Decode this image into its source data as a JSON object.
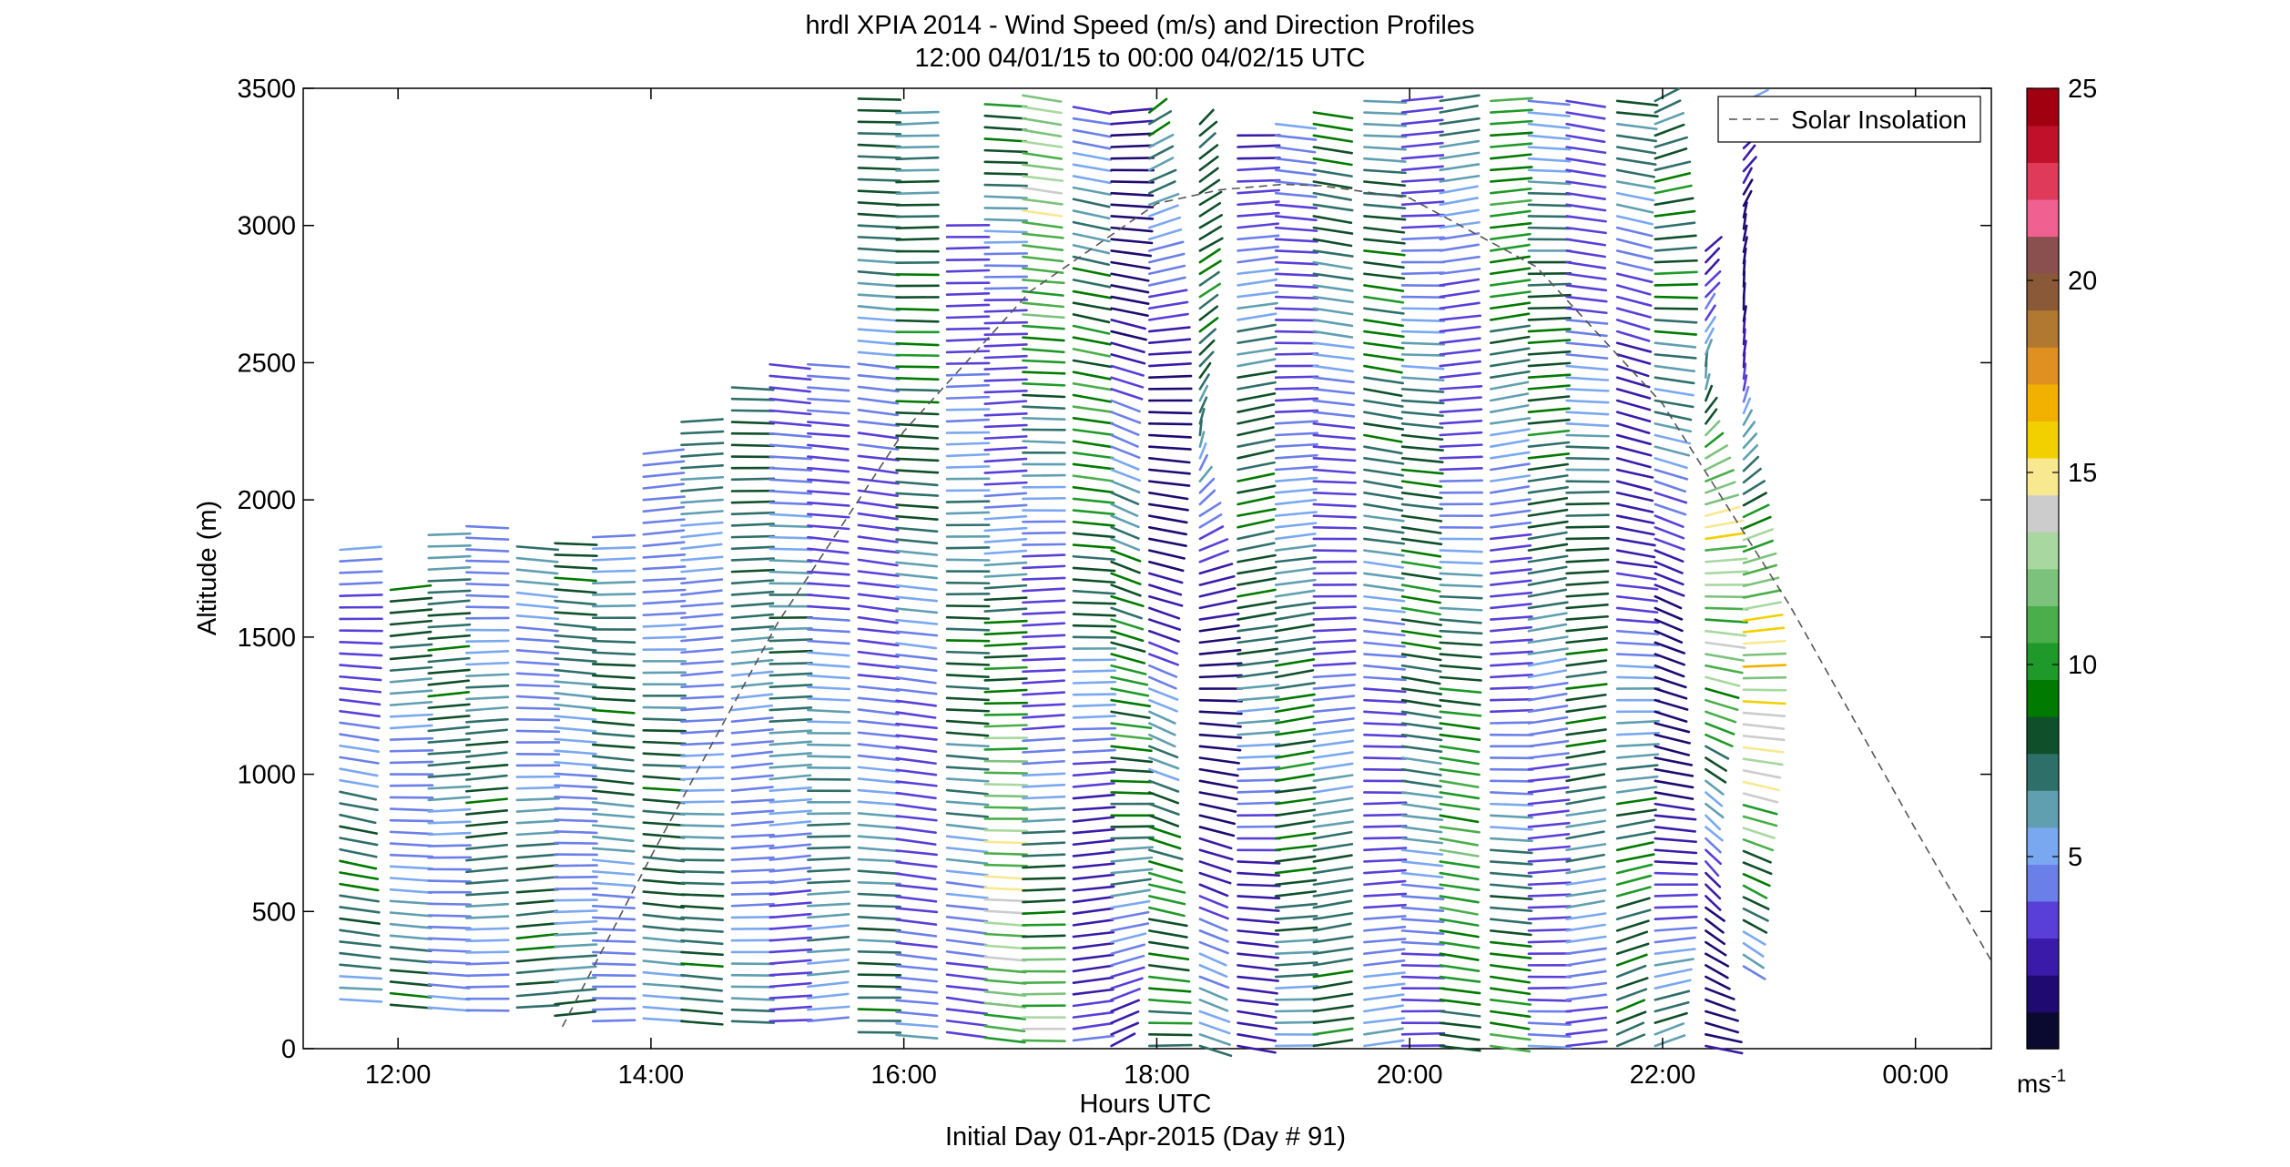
{
  "chart_data": {
    "type": "wind_barb_profile",
    "title": "hrdl XPIA 2014 - Wind Speed (m/s) and Direction Profiles",
    "subtitle": "12:00 04/01/15 to 00:00 04/02/15  UTC",
    "xlabel": "Hours UTC",
    "xlabel2": "Initial Day 01-Apr-2015 (Day # 91)",
    "ylabel": "Altitude (m)",
    "xlim_hours": [
      11.25,
      24.6
    ],
    "ylim": [
      0,
      3500
    ],
    "xticks": [
      {
        "value": 12,
        "label": "12:00"
      },
      {
        "value": 14,
        "label": "14:00"
      },
      {
        "value": 16,
        "label": "16:00"
      },
      {
        "value": 18,
        "label": "18:00"
      },
      {
        "value": 20,
        "label": "20:00"
      },
      {
        "value": 22,
        "label": "22:00"
      },
      {
        "value": 24,
        "label": "00:00"
      }
    ],
    "yticks": [
      0,
      500,
      1000,
      1500,
      2000,
      2500,
      3000,
      3500
    ],
    "legend": {
      "entries": [
        "Solar Insolation"
      ],
      "placement": "top-right",
      "line_style": "dashed",
      "color": "#555555"
    },
    "colorbar": {
      "unit_label": "ms",
      "unit_exponent": "-1",
      "range": [
        0,
        25
      ],
      "ticks": [
        5,
        10,
        15,
        20,
        25
      ],
      "colors": [
        "#0a0a30",
        "#1e0a70",
        "#3a1aa8",
        "#5a3ed8",
        "#6b7fe8",
        "#7aa8f0",
        "#5f9fb0",
        "#2f6f6a",
        "#0f4f2a",
        "#007a00",
        "#1f9a2a",
        "#4aae4a",
        "#7cc27c",
        "#a8d8a0",
        "#cccccc",
        "#f8e890",
        "#f2d000",
        "#f2b000",
        "#e09020",
        "#b07830",
        "#8a5a38",
        "#8a5050",
        "#f06090",
        "#e03a5a",
        "#c0102a",
        "#a00010"
      ]
    },
    "solar_insolation": {
      "x_hours": [
        13.3,
        14.0,
        15.0,
        16.0,
        17.0,
        18.0,
        18.5,
        19.0,
        19.3,
        20.0,
        21.0,
        22.0,
        23.0,
        24.0,
        24.6
      ],
      "y_altitude": [
        80,
        700,
        1550,
        2250,
        2760,
        3080,
        3130,
        3150,
        3145,
        3100,
        2850,
        2350,
        1620,
        800,
        320
      ]
    },
    "wind_profiles": [
      {
        "hour": 11.7,
        "altitude_range": [
          180,
          1850
        ],
        "speed_range": [
          3,
          9
        ],
        "direction_deg_range": [
          255,
          300
        ]
      },
      {
        "hour": 12.1,
        "altitude_range": [
          160,
          1700
        ],
        "speed_range": [
          4,
          9
        ],
        "direction_deg_range": [
          255,
          285
        ]
      },
      {
        "hour": 12.4,
        "altitude_range": [
          150,
          1890
        ],
        "speed_range": [
          4,
          9
        ],
        "direction_deg_range": [
          255,
          285
        ]
      },
      {
        "hour": 12.7,
        "altitude_range": [
          140,
          1940
        ],
        "speed_range": [
          4,
          9
        ],
        "direction_deg_range": [
          255,
          285
        ]
      },
      {
        "hour": 13.1,
        "altitude_range": [
          150,
          1840
        ],
        "speed_range": [
          4,
          9
        ],
        "direction_deg_range": [
          255,
          285
        ]
      },
      {
        "hour": 13.4,
        "altitude_range": [
          120,
          1850
        ],
        "speed_range": [
          4,
          9
        ],
        "direction_deg_range": [
          255,
          285
        ]
      },
      {
        "hour": 13.7,
        "altitude_range": [
          100,
          1880
        ],
        "speed_range": [
          4,
          9
        ],
        "direction_deg_range": [
          255,
          285
        ]
      },
      {
        "hour": 14.1,
        "altitude_range": [
          110,
          2180
        ],
        "speed_range": [
          4,
          9
        ],
        "direction_deg_range": [
          255,
          285
        ]
      },
      {
        "hour": 14.4,
        "altitude_range": [
          100,
          2320
        ],
        "speed_range": [
          4,
          9
        ],
        "direction_deg_range": [
          255,
          285
        ]
      },
      {
        "hour": 14.8,
        "altitude_range": [
          100,
          2430
        ],
        "speed_range": [
          4,
          9
        ],
        "direction_deg_range": [
          255,
          285
        ]
      },
      {
        "hour": 15.1,
        "altitude_range": [
          100,
          2500
        ],
        "speed_range": [
          3,
          8
        ],
        "direction_deg_range": [
          255,
          285
        ]
      },
      {
        "hour": 15.4,
        "altitude_range": [
          100,
          2500
        ],
        "speed_range": [
          3,
          8
        ],
        "direction_deg_range": [
          255,
          285
        ]
      },
      {
        "hour": 15.8,
        "altitude_range": [
          60,
          3470
        ],
        "speed_range": [
          3,
          9
        ],
        "direction_deg_range": [
          265,
          290
        ]
      },
      {
        "hour": 16.1,
        "altitude_range": [
          50,
          3450
        ],
        "speed_range": [
          3,
          10
        ],
        "direction_deg_range": [
          265,
          290
        ]
      },
      {
        "hour": 16.5,
        "altitude_range": [
          60,
          3000
        ],
        "speed_range": [
          3,
          9
        ],
        "direction_deg_range": [
          265,
          290
        ]
      },
      {
        "hour": 16.8,
        "altitude_range": [
          40,
          3470
        ],
        "speed_range": [
          3,
          15
        ],
        "direction_deg_range": [
          260,
          295
        ]
      },
      {
        "hour": 17.1,
        "altitude_range": [
          30,
          3480
        ],
        "speed_range": [
          3,
          15
        ],
        "direction_deg_range": [
          260,
          295
        ]
      },
      {
        "hour": 17.5,
        "altitude_range": [
          30,
          3470
        ],
        "speed_range": [
          2,
          12
        ],
        "direction_deg_range": [
          250,
          300
        ]
      },
      {
        "hour": 17.8,
        "altitude_range": [
          10,
          3450
        ],
        "speed_range": [
          1,
          11
        ],
        "direction_deg_range": [
          200,
          320
        ]
      },
      {
        "hour": 18.1,
        "altitude_range": [
          10,
          3420
        ],
        "speed_range": [
          1,
          11
        ],
        "direction_deg_range": [
          200,
          320
        ]
      },
      {
        "hour": 18.5,
        "altitude_range": [
          10,
          3400
        ],
        "speed_range": [
          1,
          10
        ],
        "direction_deg_range": [
          150,
          320
        ]
      },
      {
        "hour": 18.8,
        "altitude_range": [
          10,
          3350
        ],
        "speed_range": [
          2,
          10
        ],
        "direction_deg_range": [
          240,
          300
        ]
      },
      {
        "hour": 19.1,
        "altitude_range": [
          10,
          3370
        ],
        "speed_range": [
          3,
          10
        ],
        "direction_deg_range": [
          245,
          295
        ]
      },
      {
        "hour": 19.4,
        "altitude_range": [
          10,
          3420
        ],
        "speed_range": [
          3,
          10
        ],
        "direction_deg_range": [
          245,
          295
        ]
      },
      {
        "hour": 19.8,
        "altitude_range": [
          10,
          3460
        ],
        "speed_range": [
          3,
          10
        ],
        "direction_deg_range": [
          245,
          295
        ]
      },
      {
        "hour": 20.1,
        "altitude_range": [
          10,
          3470
        ],
        "speed_range": [
          3,
          10
        ],
        "direction_deg_range": [
          245,
          295
        ]
      },
      {
        "hour": 20.4,
        "altitude_range": [
          10,
          3470
        ],
        "speed_range": [
          3,
          12
        ],
        "direction_deg_range": [
          245,
          295
        ]
      },
      {
        "hour": 20.8,
        "altitude_range": [
          10,
          3470
        ],
        "speed_range": [
          3,
          12
        ],
        "direction_deg_range": [
          245,
          295
        ]
      },
      {
        "hour": 21.1,
        "altitude_range": [
          10,
          3470
        ],
        "speed_range": [
          3,
          10
        ],
        "direction_deg_range": [
          245,
          295
        ]
      },
      {
        "hour": 21.4,
        "altitude_range": [
          10,
          3470
        ],
        "speed_range": [
          3,
          10
        ],
        "direction_deg_range": [
          245,
          295
        ]
      },
      {
        "hour": 21.8,
        "altitude_range": [
          10,
          3460
        ],
        "speed_range": [
          2,
          10
        ],
        "direction_deg_range": [
          220,
          310
        ]
      },
      {
        "hour": 22.1,
        "altitude_range": [
          10,
          3460
        ],
        "speed_range": [
          1,
          10
        ],
        "direction_deg_range": [
          180,
          320
        ]
      },
      {
        "hour": 22.5,
        "altitude_range": [
          10,
          2920
        ],
        "speed_range": [
          1,
          16
        ],
        "direction_deg_range": [
          160,
          340
        ]
      },
      {
        "hour": 22.8,
        "altitude_range": [
          300,
          3450
        ],
        "speed_range": [
          1,
          17
        ],
        "direction_deg_range": [
          180,
          330
        ]
      }
    ]
  }
}
